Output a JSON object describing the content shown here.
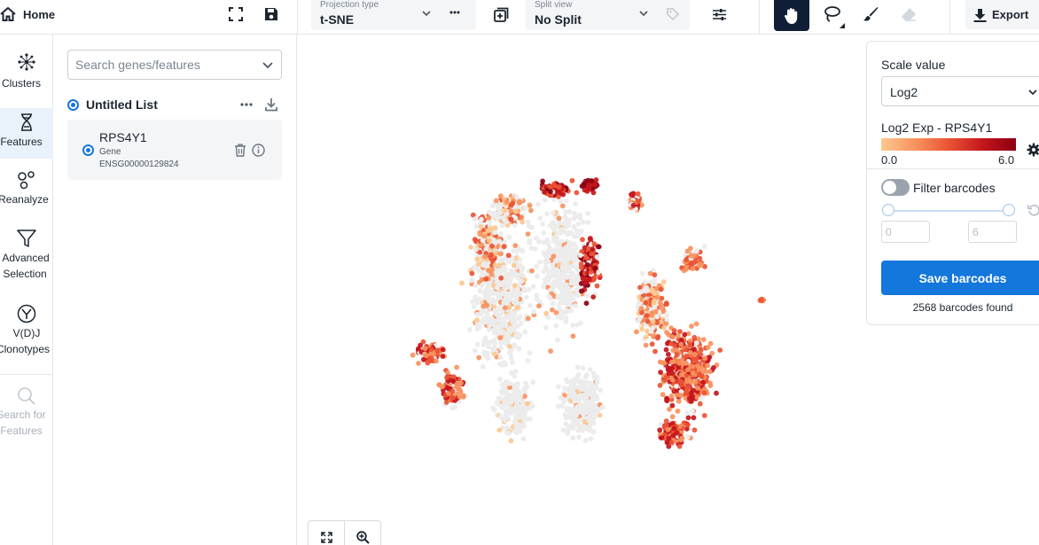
{
  "topbar": {
    "home_label": "Home",
    "projection": {
      "caption": "Projection type",
      "value": "t-SNE"
    },
    "split": {
      "caption": "Split view",
      "value": "No Split"
    },
    "export_label": "Export"
  },
  "nav": {
    "items": [
      {
        "id": "clusters",
        "label": "Clusters",
        "icon": "clusters-icon"
      },
      {
        "id": "features",
        "label": "Features",
        "icon": "hourglass-icon",
        "active": true
      },
      {
        "id": "reanalyze",
        "label": "Reanalyze",
        "icon": "reanalyze-icon"
      },
      {
        "id": "advanced",
        "label_line1": "Advanced",
        "label_line2": "Selection",
        "icon": "funnel-icon"
      },
      {
        "id": "vdj",
        "label_line1": "V(D)J",
        "label_line2": "Clonotypes",
        "icon": "vdj-icon"
      },
      {
        "id": "search",
        "label_line1": "Search for",
        "label_line2": "Features",
        "icon": "search-icon",
        "disabled": true
      }
    ]
  },
  "features": {
    "search_placeholder": "Search genes/features",
    "list_title": "Untitled List",
    "gene": {
      "name": "RPS4Y1",
      "type": "Gene",
      "id": "ENSG00000129824"
    }
  },
  "scale": {
    "label": "Scale value",
    "value": "Log2",
    "legend_title": "Log2 Exp - RPS4Y1",
    "min_label": "0.0",
    "max_label": "6.0",
    "colors": [
      "#fcc88f",
      "#f7935f",
      "#ea5434",
      "#c4161c",
      "#8c0012"
    ]
  },
  "filter": {
    "label": "Filter barcodes",
    "enabled": false,
    "range_min": "0",
    "range_max": "6"
  },
  "save": {
    "button_label": "Save barcodes",
    "found_text": "2568 barcodes found"
  }
}
